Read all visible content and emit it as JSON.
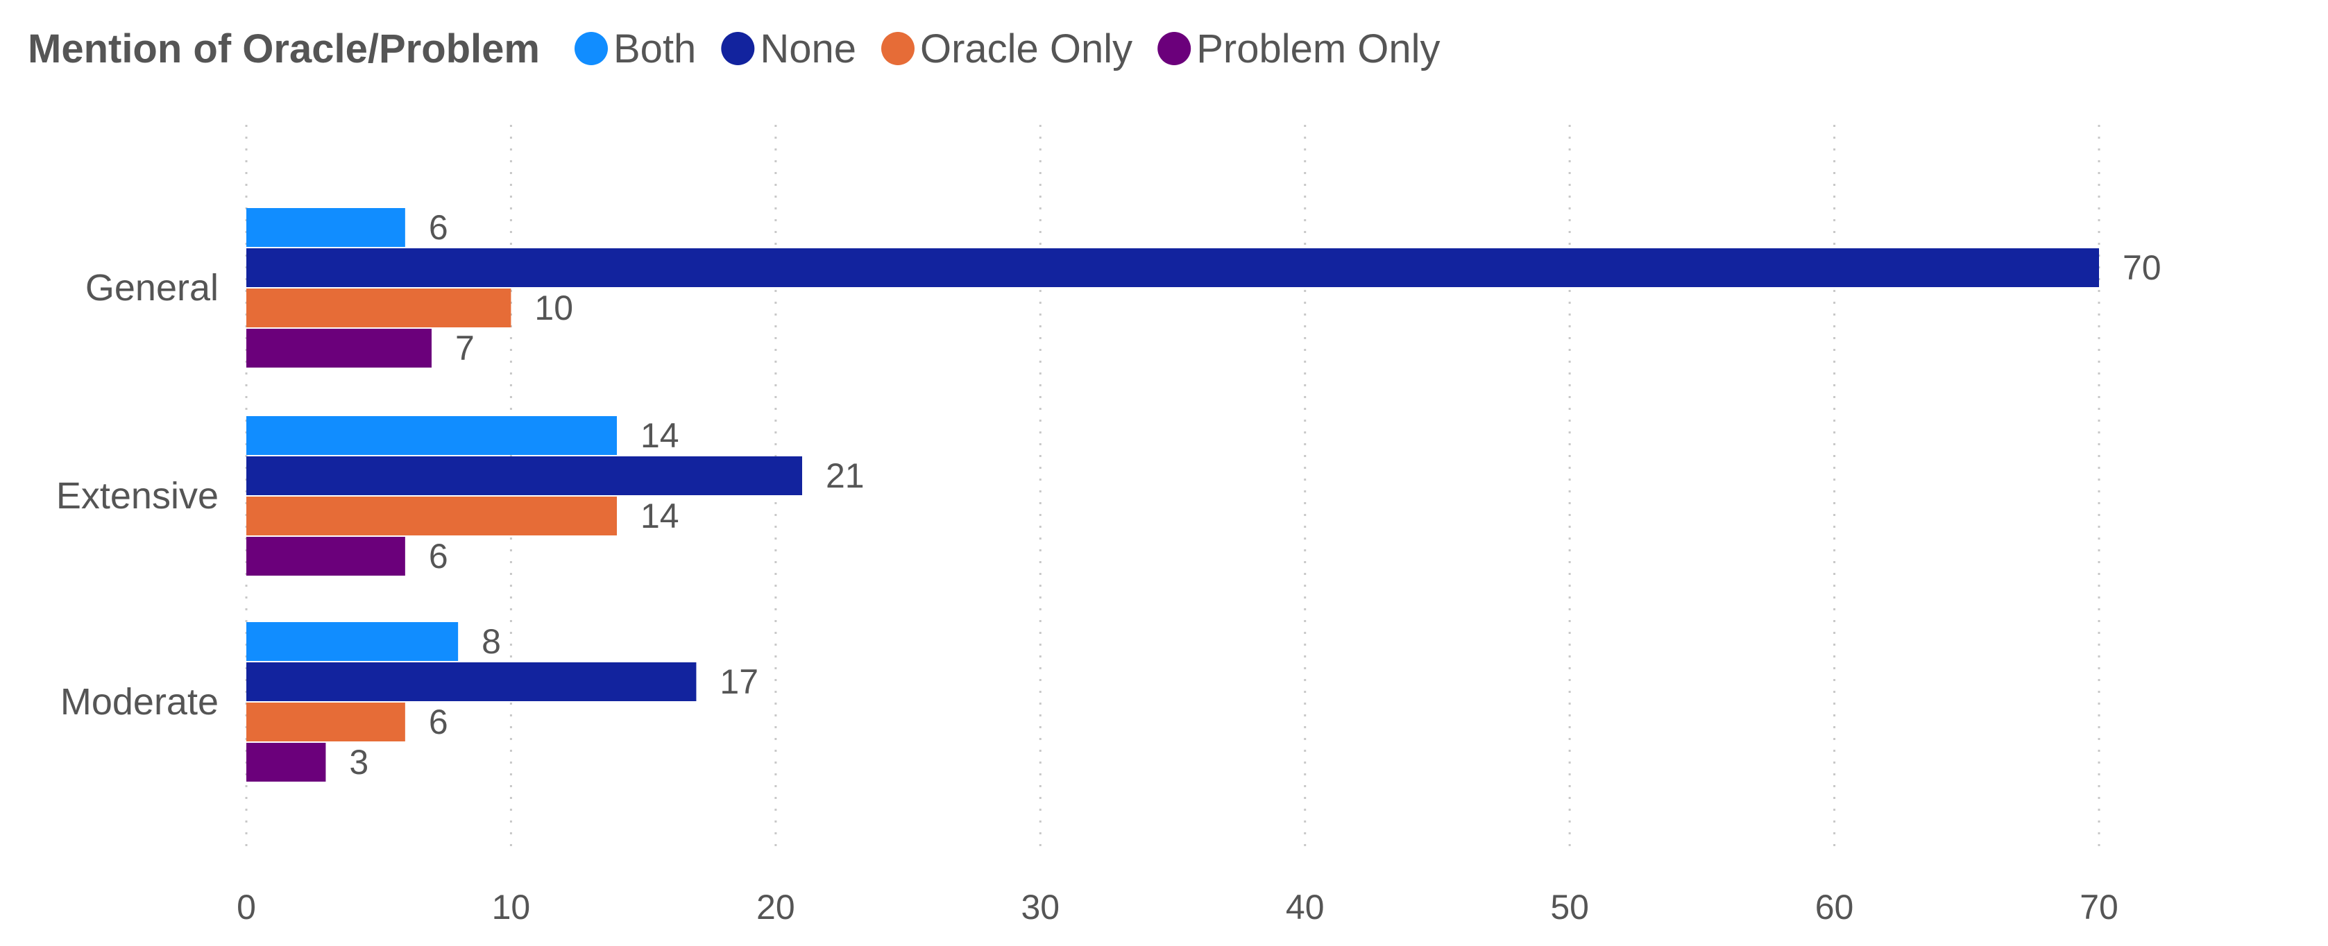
{
  "chart_data": {
    "type": "bar",
    "orientation": "horizontal",
    "legend": {
      "title": "Mention of Oracle/Problem",
      "placement": "top-left"
    },
    "categories": [
      "General",
      "Extensive",
      "Moderate"
    ],
    "series": [
      {
        "name": "Both",
        "color": "#118DFF",
        "values": [
          6,
          14,
          8
        ]
      },
      {
        "name": "None",
        "color": "#12239E",
        "values": [
          70,
          21,
          17
        ]
      },
      {
        "name": "Oracle Only",
        "color": "#E66C37",
        "values": [
          10,
          14,
          6
        ]
      },
      {
        "name": "Problem Only",
        "color": "#6B007B",
        "values": [
          7,
          6,
          3
        ]
      }
    ],
    "xlim": [
      0,
      70
    ],
    "x_ticks": [
      0,
      10,
      20,
      30,
      40,
      50,
      60,
      70
    ],
    "xlabel": "",
    "ylabel": "",
    "grid": "vertical dotted",
    "data_labels": true
  }
}
